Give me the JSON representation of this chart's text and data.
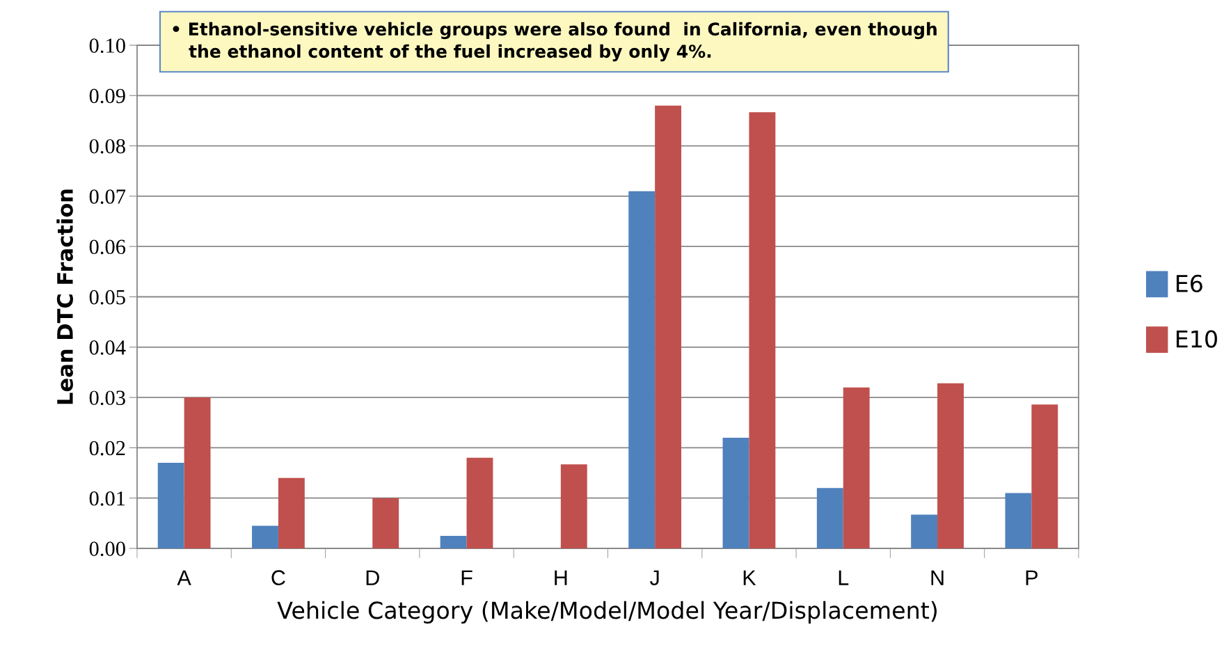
{
  "chart_data": {
    "type": "bar",
    "xlabel": "Vehicle Category (Make/Model/Model Year/Displacement)",
    "ylabel": "Lean DTC Fraction",
    "categories": [
      "A",
      "C",
      "D",
      "F",
      "H",
      "J",
      "K",
      "L",
      "N",
      "P"
    ],
    "series": [
      {
        "name": "E6",
        "color": "#4f81bd",
        "values": [
          0.017,
          0.0045,
          0,
          0.0025,
          0,
          0.071,
          0.022,
          0.012,
          0.0067,
          0.011
        ]
      },
      {
        "name": "E10",
        "color": "#c0504d",
        "values": [
          0.03,
          0.014,
          0.01,
          0.018,
          0.0167,
          0.088,
          0.0867,
          0.032,
          0.0328,
          0.0286
        ]
      }
    ],
    "ylim": [
      0,
      0.1
    ],
    "yticks": [
      {
        "value": 0,
        "label": "0.00"
      },
      {
        "value": 0.01,
        "label": "0.01"
      },
      {
        "value": 0.02,
        "label": "0.02"
      },
      {
        "value": 0.03,
        "label": "0.03"
      },
      {
        "value": 0.04,
        "label": "0.04"
      },
      {
        "value": 0.05,
        "label": "0.05"
      },
      {
        "value": 0.06,
        "label": "0.06"
      },
      {
        "value": 0.07,
        "label": "0.07"
      },
      {
        "value": 0.08,
        "label": "0.08"
      },
      {
        "value": 0.09,
        "label": "0.09"
      },
      {
        "value": 0.1,
        "label": "0.10"
      }
    ],
    "grid": "y",
    "legend": "right",
    "annotations": [
      "• Ethanol-sensitive vehicle groups were also found  in California, even though\n   the ethanol content of the fuel increased by only 4%."
    ]
  }
}
